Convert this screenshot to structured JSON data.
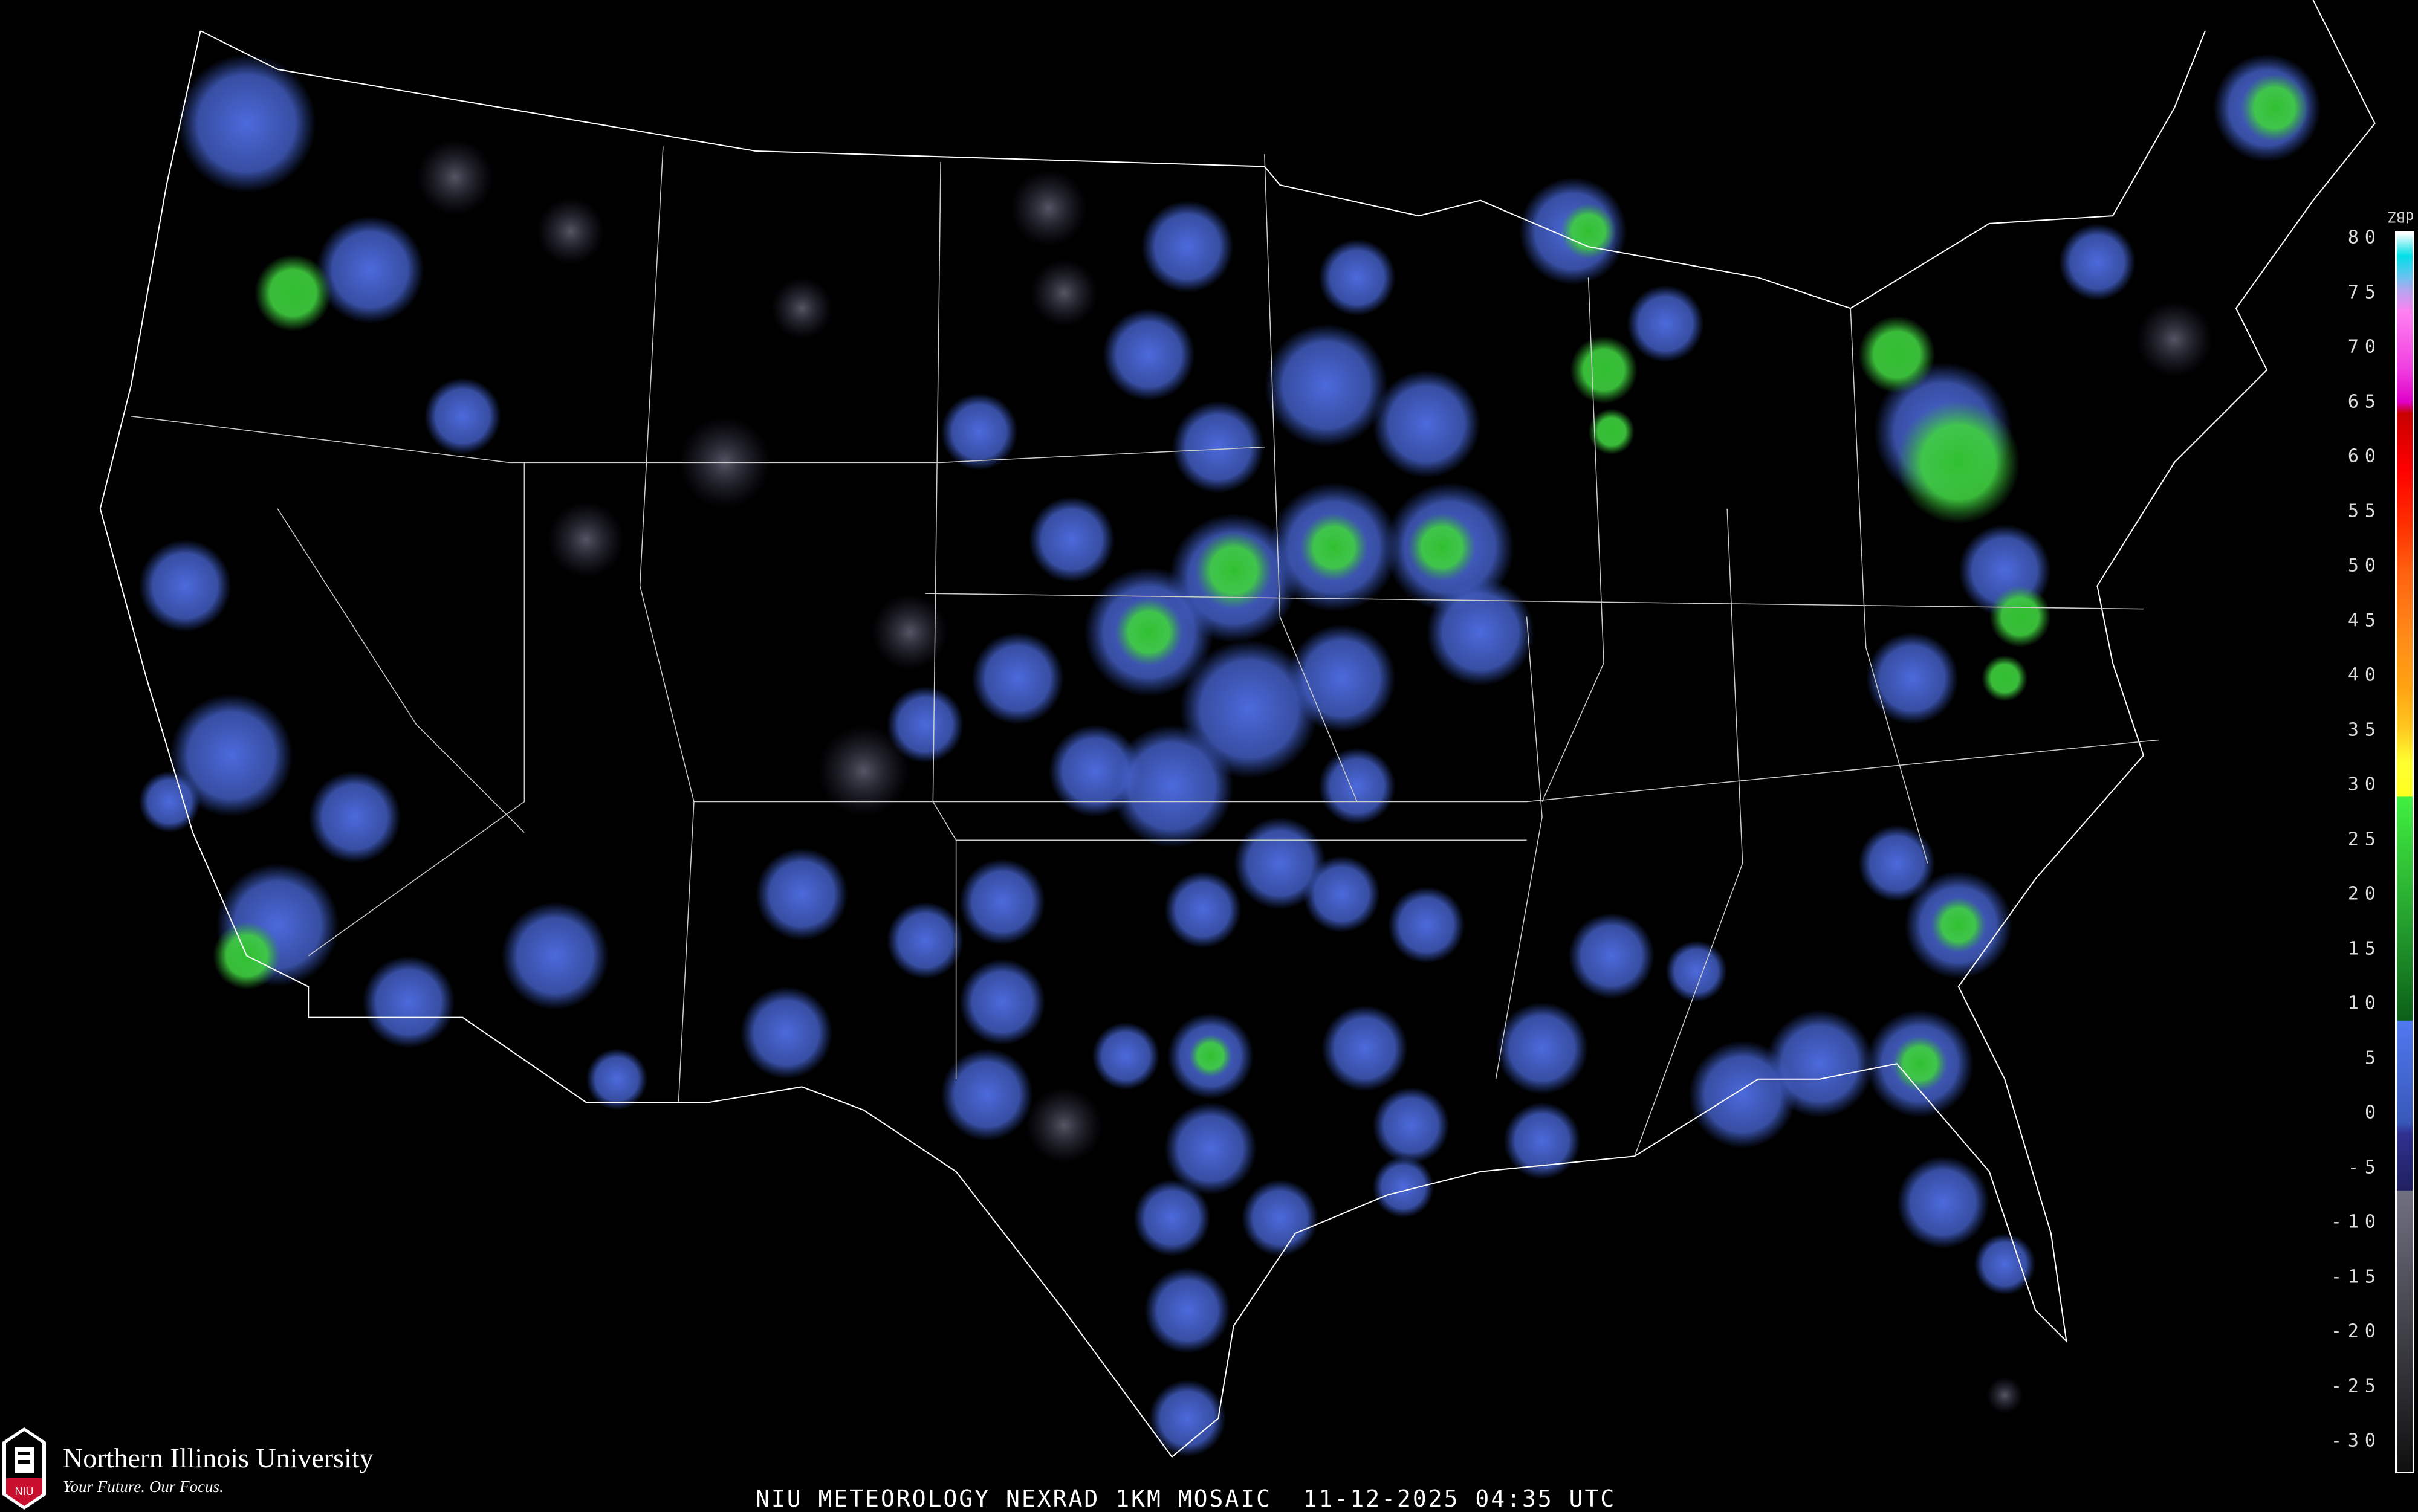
{
  "footer": {
    "title": "NIU METEOROLOGY NEXRAD 1KM MOSAIC  11-12-2025 04:35 UTC"
  },
  "logo": {
    "name": "Northern Illinois University",
    "tagline": "Your Future. Our Focus.",
    "mark_text": "NIU",
    "brand_color": "#c8102e"
  },
  "legend": {
    "units": "dBZ",
    "labels": [
      "80",
      "75",
      "70",
      "65",
      "60",
      "55",
      "50",
      "45",
      "40",
      "35",
      "30",
      "25",
      "20",
      "15",
      "10",
      "5",
      "0",
      "-5",
      "-10",
      "-15",
      "-20",
      "-25",
      "-30"
    ],
    "color_stops": [
      {
        "dbz": 80,
        "color": "#ffffff"
      },
      {
        "dbz": 78,
        "color": "#00e0e8"
      },
      {
        "dbz": 76,
        "color": "#70c0f0"
      },
      {
        "dbz": 75,
        "color": "#b0a8f0"
      },
      {
        "dbz": 73,
        "color": "#ff80f0"
      },
      {
        "dbz": 68,
        "color": "#f040e0"
      },
      {
        "dbz": 65,
        "color": "#e000c8"
      },
      {
        "dbz": 64,
        "color": "#c80000"
      },
      {
        "dbz": 59,
        "color": "#ff0000"
      },
      {
        "dbz": 54,
        "color": "#ff3000"
      },
      {
        "dbz": 50,
        "color": "#ff6010"
      },
      {
        "dbz": 44,
        "color": "#ff8c18"
      },
      {
        "dbz": 40,
        "color": "#ffa010"
      },
      {
        "dbz": 36,
        "color": "#ffc820"
      },
      {
        "dbz": 33,
        "color": "#ffff30"
      },
      {
        "dbz": 30,
        "color": "#ffff20"
      },
      {
        "dbz": 29.9,
        "color": "#40f040"
      },
      {
        "dbz": 20,
        "color": "#28a830"
      },
      {
        "dbz": 10.1,
        "color": "#0c6018"
      },
      {
        "dbz": 10,
        "color": "#5078f0"
      },
      {
        "dbz": 1,
        "color": "#3858b8"
      },
      {
        "dbz": 0,
        "color": "#303090"
      },
      {
        "dbz": -5,
        "color": "#202060"
      },
      {
        "dbz": -5.1,
        "color": "#707080"
      },
      {
        "dbz": -30,
        "color": "#101010"
      }
    ]
  },
  "map": {
    "region": "CONUS",
    "background": "#000000",
    "boundary_color": "#ffffff",
    "county_color": "#606060",
    "road_color": "#8b4513"
  }
}
